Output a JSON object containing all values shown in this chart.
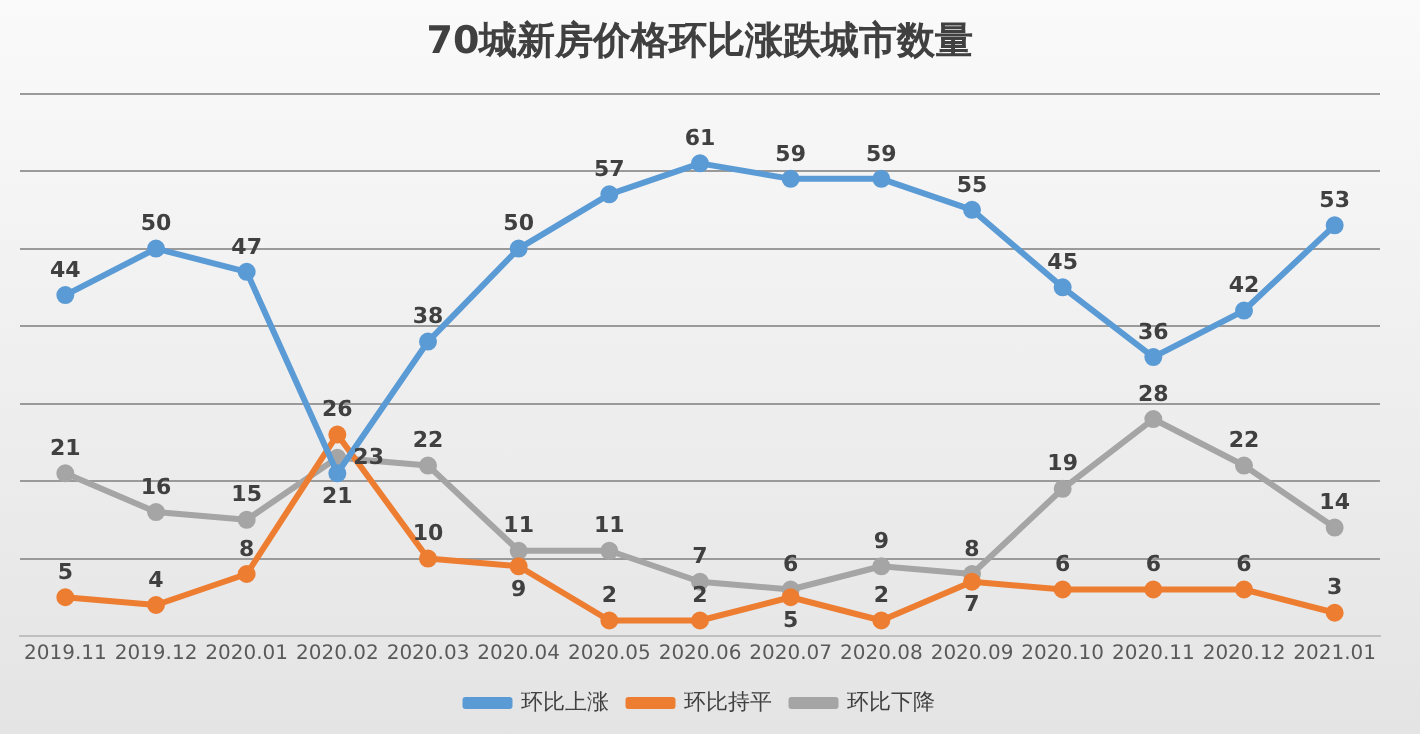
{
  "chart_data": {
    "type": "line",
    "title": "70城新房价格环比涨跌城市数量",
    "categories": [
      "2019.11",
      "2019.12",
      "2020.01",
      "2020.02",
      "2020.03",
      "2020.04",
      "2020.05",
      "2020.06",
      "2020.07",
      "2020.08",
      "2020.09",
      "2020.10",
      "2020.11",
      "2020.12",
      "2021.01"
    ],
    "series": [
      {
        "name": "环比上涨",
        "color": "#5b9bd5",
        "values": [
          44,
          50,
          47,
          21,
          38,
          50,
          57,
          61,
          59,
          59,
          55,
          45,
          36,
          42,
          53
        ]
      },
      {
        "name": "环比持平",
        "color": "#ed7d31",
        "values": [
          5,
          4,
          8,
          26,
          10,
          9,
          2,
          2,
          5,
          2,
          7,
          6,
          6,
          6,
          3
        ]
      },
      {
        "name": "环比下降",
        "color": "#a5a5a5",
        "values": [
          21,
          16,
          15,
          23,
          22,
          11,
          11,
          7,
          6,
          9,
          8,
          19,
          28,
          22,
          14
        ]
      }
    ],
    "ylim": [
      0,
      70
    ],
    "yticks": [
      {
        "value": 0,
        "label": null
      },
      {
        "value": 10,
        "label": null
      },
      {
        "value": 20,
        "label": null
      },
      {
        "value": 30,
        "label": null
      },
      {
        "value": 40,
        "label": null
      },
      {
        "value": 50,
        "label": null
      },
      {
        "value": 60,
        "label": null
      },
      {
        "value": 70,
        "label": null
      }
    ],
    "tick_labels": "x",
    "grid": "y",
    "legend": "bottom",
    "marker": "circle",
    "line_style": "solid",
    "data_labels": true
  }
}
